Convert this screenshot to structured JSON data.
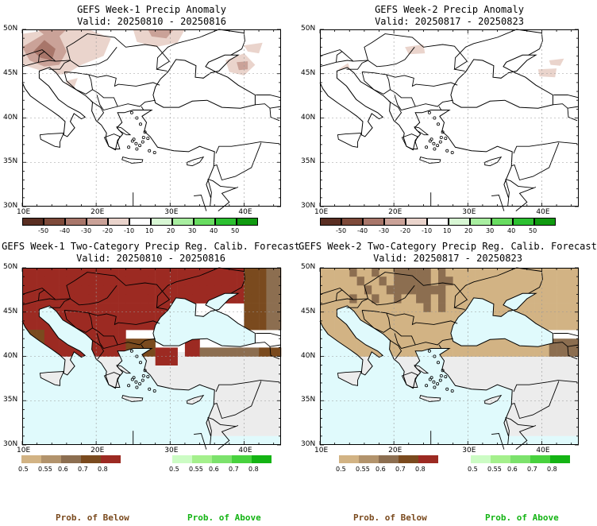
{
  "panels": [
    {
      "title": "GEFS Week-1 Precip Anomaly",
      "valid": "Valid: 20250810 - 20250816"
    },
    {
      "title": "GEFS Week-2 Precip Anomaly",
      "valid": "Valid: 20250817 - 20250823"
    },
    {
      "title": "GEFS Week-1 Two-Category Precip Reg. Calib. Forecast",
      "valid": "Valid: 20250810 - 20250816"
    },
    {
      "title": "GEFS Week-2 Two-Category Precip Reg. Calib. Forecast",
      "valid": "Valid: 20250817 - 20250823"
    }
  ],
  "lat_labels": [
    "50N",
    "45N",
    "40N",
    "35N",
    "30N"
  ],
  "lon_labels": [
    "10E",
    "20E",
    "30E",
    "40E"
  ],
  "anomaly_colorbar": {
    "labels": [
      "-50",
      "-40",
      "-30",
      "-20",
      "-10",
      "10",
      "20",
      "30",
      "40",
      "50"
    ],
    "colors": [
      "#5a2e22",
      "#7e4a3a",
      "#a8766a",
      "#caa298",
      "#ead4cc",
      "#ffffff",
      "#d8f7d4",
      "#a8eea0",
      "#68dc60",
      "#2cc030",
      "#109a10"
    ]
  },
  "below_colorbar": {
    "labels": [
      "0.5",
      "0.55",
      "0.6",
      "0.7",
      "0.8"
    ],
    "colors": [
      "#d2b384",
      "#b2936c",
      "#8c6e50",
      "#7a4a1e",
      "#9c2a22"
    ]
  },
  "above_colorbar": {
    "labels": [
      "0.5",
      "0.55",
      "0.6",
      "0.7",
      "0.8"
    ],
    "colors": [
      "#ccfcc4",
      "#a4f08c",
      "#7ce26c",
      "#48d23e",
      "#14b414"
    ]
  },
  "map_colors": {
    "land_above_normal": "#d2b384",
    "land_below_strong": "#9c2a22",
    "land_below_med": "#7a4a1e",
    "land_below_weak": "#8c6e50",
    "water_no_signal": "#e0fafc",
    "land_no_signal": "#ececec"
  },
  "prob_labels": {
    "below": "Prob. of Below",
    "above": "Prob. of Above"
  }
}
